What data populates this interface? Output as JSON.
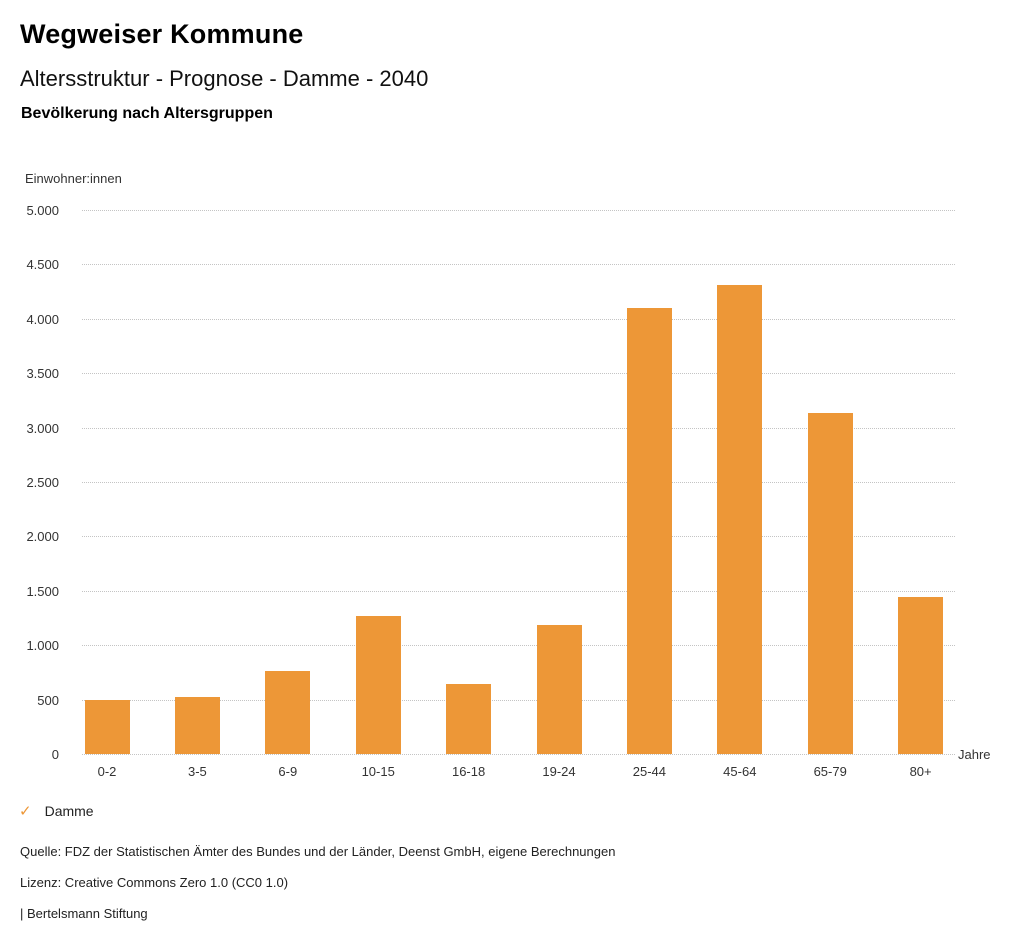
{
  "header": {
    "brand": "Wegweiser Kommune",
    "title": "Altersstruktur - Prognose - Damme - 2040",
    "subtitle": "Bevölkerung nach Altersgruppen"
  },
  "chart_data": {
    "type": "bar",
    "title": "Bevölkerung nach Altersgruppen",
    "series_name": "Damme",
    "categories": [
      "0-2",
      "3-5",
      "6-9",
      "10-15",
      "16-18",
      "19-24",
      "25-44",
      "45-64",
      "65-79",
      "80+"
    ],
    "values": [
      495,
      525,
      760,
      1265,
      645,
      1185,
      4100,
      4310,
      3130,
      1445
    ],
    "xlabel": "Jahre",
    "ylabel": "Einwohner:innen",
    "ylim": [
      0,
      5000
    ],
    "ytick_step": 500,
    "ytick_labels": [
      "0",
      "500",
      "1.000",
      "1.500",
      "2.000",
      "2.500",
      "3.000",
      "3.500",
      "4.000",
      "4.500",
      "5.000"
    ],
    "grid": "dotted horizontal",
    "legend_position": "bottom-left",
    "bar_color": "#ED9737"
  },
  "legend": {
    "check_icon": "✓",
    "label": "Damme"
  },
  "footer": {
    "source": "Quelle: FDZ der Statistischen Ämter des Bundes und der Länder, Deenst GmbH, eigene Berechnungen",
    "license": "Lizenz: Creative Commons Zero 1.0 (CC0 1.0)",
    "attribution": "| Bertelsmann Stiftung"
  },
  "colors": {
    "accent": "#ED9737",
    "grid": "#c4c4c4",
    "text": "#1a1a1a",
    "background": "#ffffff"
  }
}
